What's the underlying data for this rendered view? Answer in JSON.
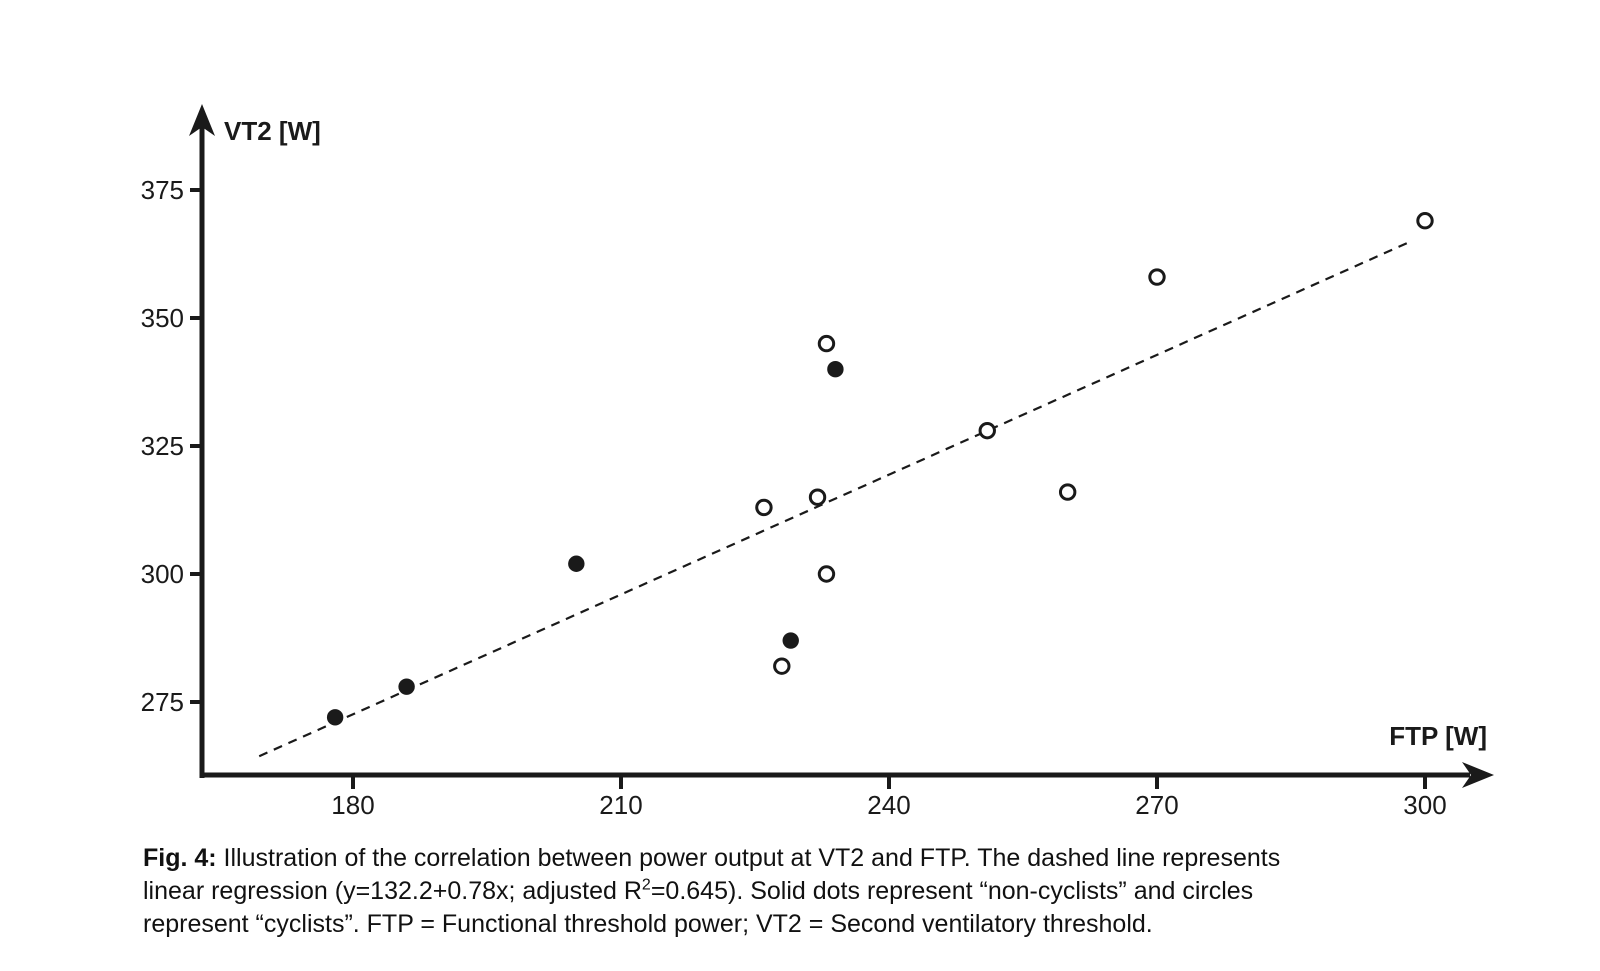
{
  "figure": {
    "caption": {
      "lines": [
        [
          {
            "t": "Fig. 4:",
            "b": true
          },
          {
            "t": " Illustration of the correlation between power output at VT2 and FTP. The dashed line represents"
          }
        ],
        [
          {
            "t": "linear regression (y=132.2+0.78x; adjusted R"
          },
          {
            "t": "2",
            "sup": true
          },
          {
            "t": "=0.645). Solid dots represent “non-cyclists” and circles"
          }
        ],
        [
          {
            "t": "represent “cyclists”. FTP = Functional threshold power; VT2 = Second ventilatory threshold."
          }
        ]
      ]
    }
  },
  "chart_data": {
    "type": "scatter",
    "title": "",
    "xlabel": "FTP [W]",
    "ylabel": "VT2 [W]",
    "x_ticks": [
      180,
      210,
      240,
      270,
      300
    ],
    "y_ticks": [
      375,
      350,
      325,
      300,
      275
    ],
    "xlim": [
      163,
      308
    ],
    "ylim": [
      262,
      392
    ],
    "grid": false,
    "legend_position": "none",
    "series": [
      {
        "name": "non-cyclists",
        "marker": "filled-circle",
        "points": [
          {
            "x": 178,
            "y": 272
          },
          {
            "x": 186,
            "y": 278
          },
          {
            "x": 205,
            "y": 302
          },
          {
            "x": 229,
            "y": 287
          },
          {
            "x": 234,
            "y": 340
          }
        ]
      },
      {
        "name": "cyclists",
        "marker": "open-circle",
        "points": [
          {
            "x": 226,
            "y": 313
          },
          {
            "x": 228,
            "y": 282
          },
          {
            "x": 232,
            "y": 315
          },
          {
            "x": 233,
            "y": 300
          },
          {
            "x": 233,
            "y": 345
          },
          {
            "x": 251,
            "y": 328
          },
          {
            "x": 260,
            "y": 316
          },
          {
            "x": 270,
            "y": 358
          },
          {
            "x": 300,
            "y": 369
          }
        ]
      }
    ],
    "regression": {
      "equation": "y=132.2+0.78x",
      "intercept": 132.2,
      "slope": 0.78,
      "adjusted_r2": 0.645,
      "x_start": 169.5,
      "x_end": 298.3,
      "style": "dashed"
    },
    "colors": {
      "ink": "#1a1a1a",
      "background": "#ffffff"
    }
  }
}
